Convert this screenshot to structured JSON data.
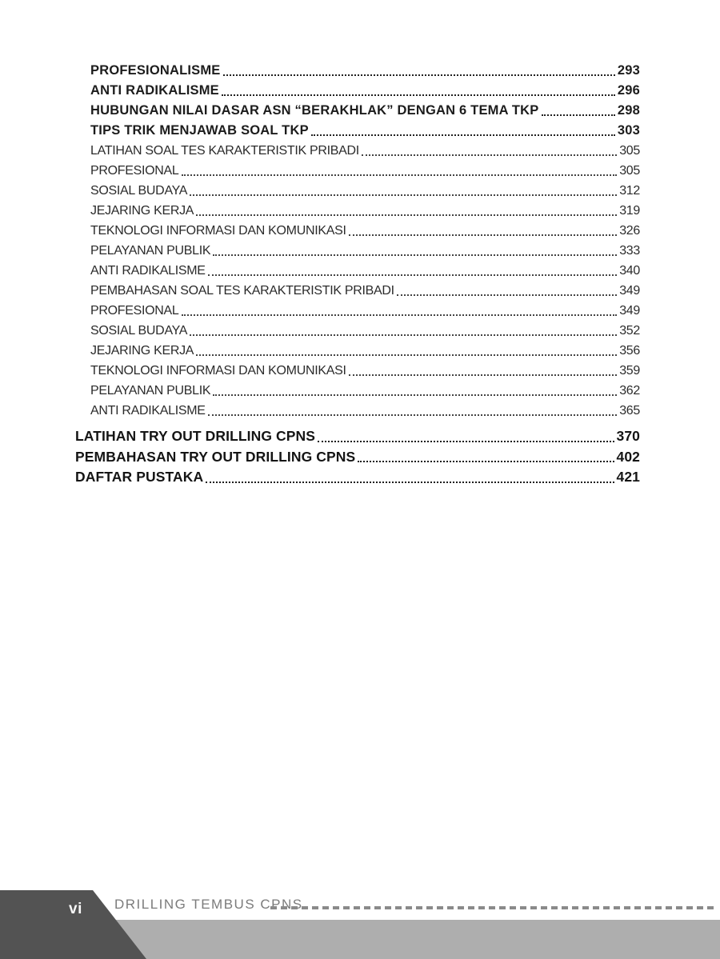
{
  "document": {
    "toc_sub_entries": [
      {
        "label": "PROFESIONALISME",
        "page": "293",
        "style": "boldsub"
      },
      {
        "label": "ANTI RADIKALISME",
        "page": "296",
        "style": "boldsub"
      },
      {
        "label": "HUBUNGAN NILAI DASAR ASN “BERAKHLAK” DENGAN 6 TEMA TKP",
        "page": "298",
        "style": "boldsub"
      },
      {
        "label": "TIPS TRIK MENJAWAB SOAL TKP",
        "page": "303",
        "style": "boldsub"
      },
      {
        "label": "LATIHAN SOAL TES KARAKTERISTIK PRIBADI",
        "page": "305",
        "style": "regular"
      },
      {
        "label": "PROFESIONAL",
        "page": "305",
        "style": "regular"
      },
      {
        "label": "SOSIAL BUDAYA",
        "page": "312",
        "style": "regular"
      },
      {
        "label": "JEJARING KERJA",
        "page": "319",
        "style": "regular"
      },
      {
        "label": "TEKNOLOGI INFORMASI DAN KOMUNIKASI",
        "page": "326",
        "style": "regular"
      },
      {
        "label": "PELAYANAN PUBLIK",
        "page": "333",
        "style": "regular"
      },
      {
        "label": "ANTI RADIKALISME",
        "page": "340",
        "style": "regular"
      },
      {
        "label": "PEMBAHASAN SOAL TES KARAKTERISTIK PRIBADI",
        "page": "349",
        "style": "regular"
      },
      {
        "label": "PROFESIONAL",
        "page": "349",
        "style": "regular"
      },
      {
        "label": "SOSIAL BUDAYA",
        "page": "352",
        "style": "regular"
      },
      {
        "label": "JEJARING KERJA",
        "page": "356",
        "style": "regular"
      },
      {
        "label": "TEKNOLOGI INFORMASI DAN KOMUNIKASI",
        "page": "359",
        "style": "regular"
      },
      {
        "label": "PELAYANAN PUBLIK",
        "page": "362",
        "style": "regular"
      },
      {
        "label": "ANTI RADIKALISME",
        "page": "365",
        "style": "regular"
      }
    ],
    "toc_main_entries": [
      {
        "label": "LATIHAN TRY OUT DRILLING CPNS",
        "page": "370"
      },
      {
        "label": "PEMBAHASAN TRY OUT DRILLING CPNS",
        "page": "402"
      },
      {
        "label": "DAFTAR PUSTAKA",
        "page": "421"
      }
    ],
    "footer": {
      "page_number": "vi",
      "running_title": "DRILLING TEMBUS CPNS"
    },
    "colors": {
      "text_bold": "#1c1c1c",
      "text_regular": "#2b2b2b",
      "footer_dark": "#535353",
      "footer_bar": "#aeaeae",
      "footer_text": "#7b7b7b",
      "dash_line": "#8a8a8a"
    }
  }
}
